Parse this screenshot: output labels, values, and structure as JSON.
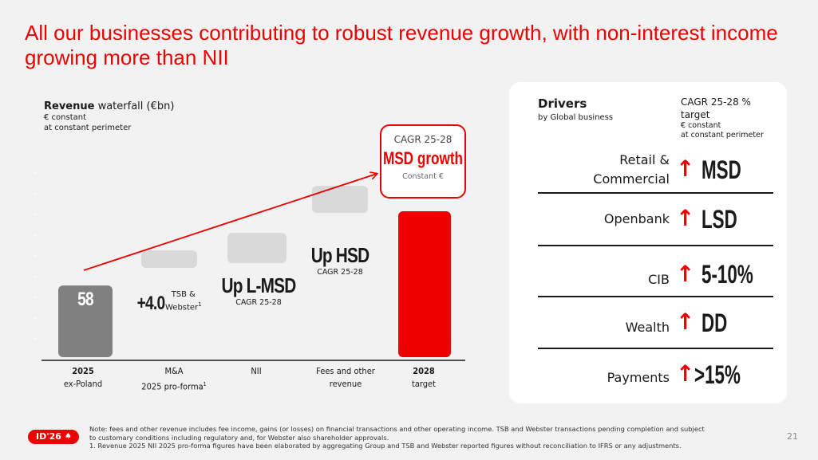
{
  "title": "All our businesses contributing to robust revenue growth, with non-interest income growing more than NII",
  "chart_header": {
    "title_bold": "Revenue",
    "title_rest": " waterfall (€bn)",
    "sub1": "€ constant",
    "sub2": "at constant perimeter"
  },
  "chart_data": {
    "type": "bar",
    "subtype": "waterfall",
    "title": "Revenue waterfall (€bn)",
    "categories": [
      "2025 ex-Poland",
      "M&A 2025 pro-forma¹",
      "NII",
      "Fees and other revenue",
      "2028 target"
    ],
    "values": [
      58,
      4.0,
      null,
      null,
      null
    ],
    "labels": [
      "58",
      "+4.0",
      "Up L-MSD",
      "Up HSD",
      ""
    ],
    "sublabels": [
      "",
      "TSB & Webster¹",
      "CAGR 25-28",
      "CAGR 25-28",
      ""
    ],
    "bar_kinds": [
      "total",
      "increment",
      "increment",
      "increment",
      "total"
    ],
    "colors": {
      "start": "#808080",
      "increment": "#d9d9d9",
      "end": "#ec0000",
      "arrow": "#ec0000"
    },
    "xlabel": "",
    "ylabel": "",
    "grid": false,
    "legend": "none"
  },
  "categories_display": [
    {
      "line1": "2025",
      "line2": "ex-Poland",
      "bold_first": true
    },
    {
      "line1": "M&A",
      "line2": "2025 pro-forma",
      "sup": "1",
      "bold_first": false
    },
    {
      "line1": "NII",
      "line2": "",
      "bold_first": false
    },
    {
      "line1": "Fees and other",
      "line2": "revenue",
      "bold_first": false
    },
    {
      "line1": "2028",
      "line2": "target",
      "bold_first": true
    }
  ],
  "bar_labels": {
    "start_value": "58",
    "ma_value": "+4.0",
    "ma_sub1": "TSB &",
    "ma_sub2": "Webster",
    "ma_sup": "1",
    "nii_value": "Up L-MSD",
    "nii_sub": "CAGR 25-28",
    "fees_value": "Up HSD",
    "fees_sub": "CAGR 25-28"
  },
  "callout": {
    "line1": "CAGR 25-28",
    "line2": "MSD growth",
    "line3": "Constant €"
  },
  "drivers": {
    "title": "Drivers",
    "subtitle": "by Global business",
    "cagr_line1": "CAGR 25-28 %",
    "cagr_line2": "target",
    "cagr_line3": "€ constant",
    "cagr_line4": "at constant perimeter",
    "arrow_icon": "up-arrow-icon",
    "rows": [
      {
        "name1": "Retail &",
        "name2": "Commercial",
        "value": "MSD"
      },
      {
        "name1": "Openbank",
        "name2": "",
        "value": "LSD"
      },
      {
        "name1": "CIB",
        "name2": "",
        "value": "5-10%"
      },
      {
        "name1": "Wealth",
        "name2": "",
        "value": "DD"
      },
      {
        "name1": "Payments",
        "name2": "",
        "value": ">15%"
      }
    ]
  },
  "footer": {
    "badge": "ID'26",
    "badge_icon": "santander-flame-icon",
    "note1": "Note: fees and other revenue includes fee income, gains (or losses) on financial transactions and other operating income. TSB and Webster transactions pending completion and subject to customary conditions including regulatory and, for Webster also shareholder approvals.",
    "note2": "1.  Revenue 2025 NII 2025 pro-forma figures have been elaborated by aggregating Group and TSB and Webster reported figures without reconciliation to IFRS or any adjustments.",
    "page_number": "21"
  }
}
